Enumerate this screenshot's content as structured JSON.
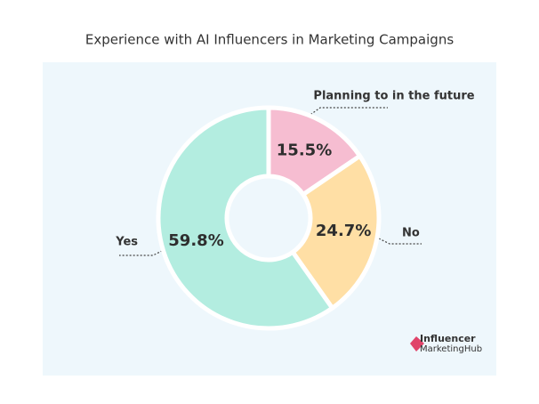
{
  "chart_data": {
    "type": "donut",
    "title": "Experience with AI Influencers in Marketing Campaigns",
    "categories": [
      "Planning to in the future",
      "No",
      "Yes"
    ],
    "values": [
      15.5,
      24.7,
      59.8
    ],
    "value_labels": [
      "15.5%",
      "24.7%",
      "59.8%"
    ],
    "colors": [
      "#f6bdd1",
      "#ffdfa5",
      "#b3ede0"
    ]
  },
  "branding": {
    "line1": "Influencer",
    "line2": "MarketingHub"
  }
}
